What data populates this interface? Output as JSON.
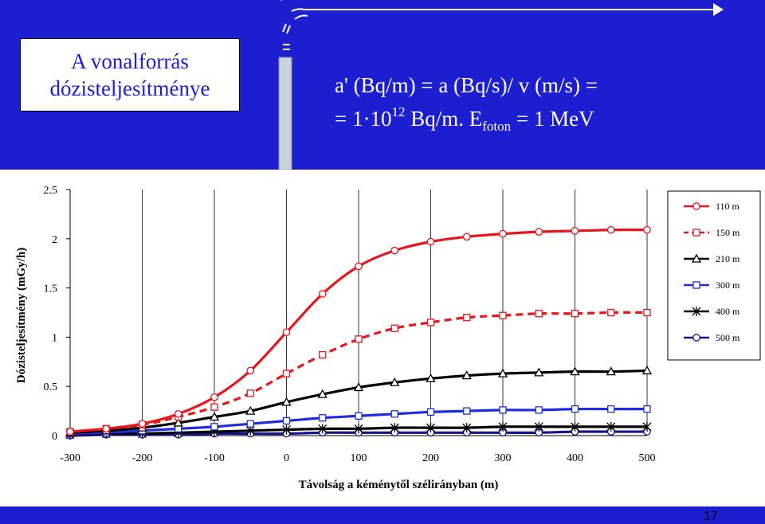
{
  "title": {
    "line1": "A vonalforrás",
    "line2": "dózisteljesítménye"
  },
  "formula": {
    "line1": "a' (Bq/m) = a (Bq/s)/ v (m/s) =",
    "line2_prefix": "= 1·10",
    "line2_exp": "12",
    "line2_mid": " Bq/m. E",
    "line2_sub": "foton",
    "line2_suffix": " = 1 MeV"
  },
  "page_number": "17",
  "colors": {
    "background": "#1d1ecf",
    "red": "#e8151b",
    "black": "#000000",
    "blue": "#1f2be0",
    "darkblue": "#14148c"
  },
  "icons": {
    "source": "chimney-icon",
    "wind": "wind-arrow-icon"
  },
  "chart_data": {
    "type": "line",
    "title": "",
    "xlabel": "Távolság a kéménytől szélirányban (m)",
    "ylabel": "Dózisteljesítmény (mGy/h)",
    "xlim": [
      -300,
      500
    ],
    "ylim": [
      0,
      2.5
    ],
    "xticks": [
      "-300",
      "-200",
      "-100",
      "0",
      "100",
      "200",
      "300",
      "400",
      "500"
    ],
    "yticks": [
      "0",
      "0.5",
      "1",
      "1.5",
      "2",
      "2.5"
    ],
    "grid": "vertical",
    "legend": "right",
    "x": [
      -300,
      -250,
      -200,
      -150,
      -100,
      -50,
      0,
      50,
      100,
      150,
      200,
      250,
      300,
      350,
      400,
      450,
      500
    ],
    "series": [
      {
        "name": "110 m",
        "color": "#e8151b",
        "dash": "solid",
        "marker": "circle",
        "values": [
          0.04,
          0.07,
          0.12,
          0.22,
          0.39,
          0.66,
          1.05,
          1.44,
          1.72,
          1.88,
          1.97,
          2.02,
          2.05,
          2.07,
          2.08,
          2.09,
          2.09
        ]
      },
      {
        "name": "150 m",
        "color": "#e8151b",
        "dash": "dashed",
        "marker": "square",
        "values": [
          0.04,
          0.07,
          0.11,
          0.19,
          0.29,
          0.43,
          0.63,
          0.82,
          0.98,
          1.09,
          1.15,
          1.2,
          1.22,
          1.24,
          1.24,
          1.25,
          1.25
        ]
      },
      {
        "name": "210 m",
        "color": "#000000",
        "dash": "solid",
        "marker": "triangle",
        "values": [
          0.03,
          0.05,
          0.08,
          0.13,
          0.19,
          0.25,
          0.34,
          0.42,
          0.49,
          0.54,
          0.58,
          0.61,
          0.63,
          0.64,
          0.65,
          0.65,
          0.66
        ]
      },
      {
        "name": "300 m",
        "color": "#1f2be0",
        "dash": "solid",
        "marker": "square",
        "values": [
          0.02,
          0.03,
          0.05,
          0.07,
          0.09,
          0.12,
          0.15,
          0.18,
          0.2,
          0.22,
          0.24,
          0.25,
          0.26,
          0.26,
          0.27,
          0.27,
          0.27
        ]
      },
      {
        "name": "400 m",
        "color": "#000000",
        "dash": "solid",
        "marker": "asterisk",
        "values": [
          0.01,
          0.02,
          0.02,
          0.03,
          0.04,
          0.05,
          0.06,
          0.07,
          0.07,
          0.08,
          0.08,
          0.08,
          0.09,
          0.09,
          0.09,
          0.09,
          0.09
        ]
      },
      {
        "name": "500 m",
        "color": "#14148c",
        "dash": "solid",
        "marker": "circle",
        "values": [
          0.0,
          0.01,
          0.01,
          0.01,
          0.02,
          0.02,
          0.02,
          0.03,
          0.03,
          0.03,
          0.03,
          0.03,
          0.03,
          0.03,
          0.04,
          0.04,
          0.04
        ]
      }
    ]
  }
}
